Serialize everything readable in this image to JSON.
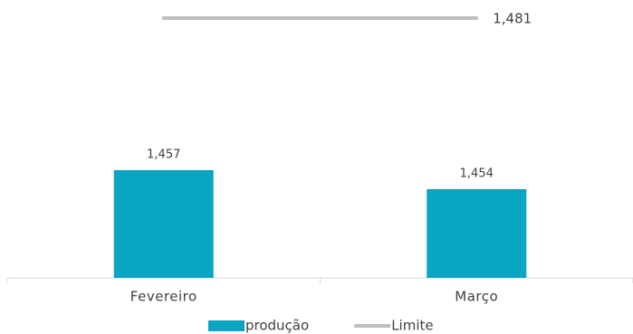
{
  "chart_data": {
    "type": "bar",
    "categories": [
      "Fevereiro",
      "Março"
    ],
    "series": [
      {
        "name": "produção",
        "type": "bar",
        "color": "#0aa5c3",
        "values": [
          1457,
          1454
        ],
        "value_labels": [
          "1,457",
          "1,454"
        ]
      },
      {
        "name": "Limite",
        "type": "line",
        "color": "#bfbfbf",
        "values": [
          1481,
          1481
        ],
        "value_labels": [
          null,
          "1,481"
        ]
      }
    ],
    "ylim": [
      1440,
      1483
    ],
    "legend": "bottom"
  }
}
